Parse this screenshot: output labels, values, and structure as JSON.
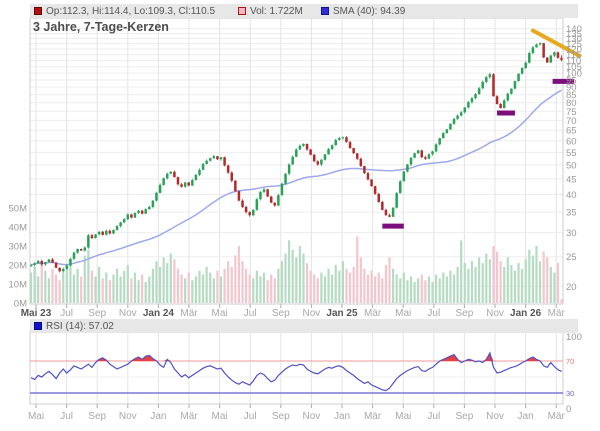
{
  "header": {
    "ohlc_label": "Op:112.3, Hi:114.4, Lo:109.3, Cl:110.5",
    "vol_label": "Vol: 1.722M",
    "sma_label": "SMA (40): 94.39",
    "title": "3 Jahre, 7-Tage-Kerzen"
  },
  "rsi_panel": {
    "label": "RSI (14): 57.02"
  },
  "axes": {
    "price_ticks": [
      140,
      135,
      130,
      125,
      120,
      115,
      110,
      105,
      100,
      95,
      90,
      85,
      80,
      75,
      70,
      65,
      60,
      55,
      50,
      45,
      40,
      35,
      30,
      25,
      20
    ],
    "volume_ticks": [
      "50M",
      "40M",
      "30M",
      "20M",
      "10M",
      "0M"
    ],
    "rsi_ticks": [
      {
        "value": 100,
        "label": "100",
        "color": "#999999"
      },
      {
        "value": 70,
        "label": "70",
        "color": "#e07878"
      },
      {
        "value": 30,
        "label": "30",
        "color": "#6868d8"
      },
      {
        "value": 0,
        "label": "0",
        "color": "#999999"
      }
    ],
    "months_main": [
      {
        "label": "Mai 23",
        "bold": true
      },
      {
        "label": "Jul",
        "bold": false
      },
      {
        "label": "Sep",
        "bold": false
      },
      {
        "label": "Nov",
        "bold": false
      },
      {
        "label": "Jan 24",
        "bold": true
      },
      {
        "label": "Mär",
        "bold": false
      },
      {
        "label": "Mai",
        "bold": false
      },
      {
        "label": "Jul",
        "bold": false
      },
      {
        "label": "Sep",
        "bold": false
      },
      {
        "label": "Nov",
        "bold": false
      },
      {
        "label": "Jan 25",
        "bold": true
      },
      {
        "label": "Mär",
        "bold": false
      },
      {
        "label": "Mai",
        "bold": false
      },
      {
        "label": "Jul",
        "bold": false
      },
      {
        "label": "Sep",
        "bold": false
      },
      {
        "label": "Nov",
        "bold": false
      },
      {
        "label": "Jan 26",
        "bold": true
      },
      {
        "label": "Mär",
        "bold": false
      }
    ],
    "months_rsi": [
      "Mai",
      "Jul",
      "Sep",
      "Nov",
      "Jan",
      "Mär",
      "Mai",
      "Jul",
      "Sep",
      "Nov",
      "Jan",
      "Mär",
      "Mai",
      "Jul",
      "Sep",
      "Nov",
      "Jan",
      "Mär"
    ]
  },
  "colors": {
    "candle_up": "#27a258",
    "candle_down": "#b22a2a",
    "vol_up": "#b5dbc3",
    "vol_down": "#f3c5cd",
    "sma_line": "#9fa8ef",
    "rsi_line": "#5050c8",
    "rsi_overbought_line": "#f09898",
    "rsi_oversold_line": "#7878d8",
    "rsi_fill": "#e84040",
    "annotation_trend": "#e8a81c",
    "annotation_support": "#7d0f7d",
    "grid_h": "#ededed",
    "grid_v": "#e4e4e4",
    "panel_border": "#cccccc",
    "tick_text": "#999999",
    "month_text": "#a8a8a8",
    "month_text_bold": "#555555",
    "legend_ohlc_fill": "#b40f0f",
    "legend_ohlc_border": "#5f0606",
    "legend_vol_fill": "#f3b9c3",
    "legend_vol_border": "#b01212",
    "legend_sma_fill": "#2f2fd9",
    "legend_sma_border": "#12128c",
    "legend_rsi_fill": "#0f0fd0",
    "legend_rsi_border": "#0a0a80"
  },
  "chart_data": {
    "type": "candlestick",
    "title": "3 Jahre, 7-Tage-Kerzen",
    "interval": "weekly (7-Tage-Kerzen)",
    "span": "3 Jahre",
    "price_axis": {
      "min": 20,
      "max": 140,
      "scale": "log",
      "position": "right"
    },
    "volume_axis": {
      "min_m": 0,
      "max_m": 50,
      "position": "left"
    },
    "rsi_axis": {
      "min": 0,
      "max": 100,
      "overbought": 70,
      "oversold": 30
    },
    "sma_period": 40,
    "sma_current": 94.39,
    "rsi_current": 57.02,
    "volume_current": "1.722M",
    "last_candle": {
      "open": 112.3,
      "high": 114.4,
      "low": 109.3,
      "close": 110.5
    },
    "closes": [
      23.5,
      23.8,
      24.2,
      23.6,
      24.0,
      24.5,
      23.9,
      23.0,
      22.4,
      22.8,
      23.4,
      24.6,
      25.8,
      26.5,
      26.2,
      26.8,
      29.4,
      28.8,
      29.6,
      30.2,
      29.5,
      30.4,
      29.8,
      30.6,
      31.5,
      32.4,
      33.2,
      34.4,
      33.6,
      34.8,
      35.4,
      34.6,
      35.8,
      36.4,
      38.2,
      40.5,
      43.0,
      45.2,
      46.8,
      47.5,
      45.6,
      43.2,
      42.4,
      43.8,
      42.8,
      44.6,
      46.4,
      48.2,
      50.4,
      51.6,
      52.6,
      53.4,
      52.2,
      53.0,
      49.8,
      47.2,
      44.4,
      41.0,
      38.2,
      36.4,
      35.0,
      34.2,
      35.6,
      38.6,
      40.8,
      41.6,
      39.4,
      37.6,
      36.8,
      39.8,
      43.4,
      46.8,
      50.2,
      53.2,
      56.2,
      57.8,
      58.6,
      56.2,
      54.0,
      51.4,
      50.2,
      52.0,
      54.2,
      56.4,
      58.0,
      60.4,
      61.2,
      61.6,
      59.4,
      56.8,
      54.6,
      52.4,
      49.6,
      47.0,
      44.8,
      42.6,
      40.2,
      37.8,
      35.6,
      34.2,
      33.8,
      36.2,
      40.4,
      44.2,
      47.6,
      50.2,
      52.8,
      54.6,
      55.8,
      53.0,
      52.4,
      54.2,
      55.4,
      58.4,
      61.2,
      63.6,
      65.4,
      68.2,
      70.8,
      72.6,
      74.4,
      77.2,
      80.4,
      82.8,
      85.4,
      89.2,
      93.6,
      97.0,
      99.2,
      84.0,
      79.2,
      76.8,
      81.4,
      85.6,
      89.0,
      94.2,
      99.6,
      104.0,
      108.2,
      116.4,
      121.6,
      124.2,
      125.4,
      112.6,
      108.4,
      114.2,
      117.0,
      112.3,
      110.5
    ],
    "volumes_m": [
      16,
      19,
      14,
      21,
      17,
      13,
      18,
      15,
      12,
      16,
      20,
      22,
      15,
      18,
      14,
      25,
      28,
      17,
      14,
      19,
      13,
      16,
      12,
      15,
      18,
      14,
      17,
      20,
      13,
      16,
      12,
      15,
      11,
      14,
      18,
      22,
      19,
      24,
      21,
      26,
      23,
      18,
      15,
      13,
      16,
      12,
      14,
      17,
      15,
      19,
      16,
      13,
      17,
      14,
      18,
      22,
      19,
      25,
      30,
      22,
      18,
      15,
      13,
      17,
      14,
      16,
      12,
      15,
      13,
      18,
      22,
      26,
      33,
      28,
      24,
      30,
      26,
      21,
      17,
      15,
      13,
      16,
      14,
      18,
      15,
      20,
      17,
      22,
      18,
      16,
      19,
      35,
      24,
      18,
      15,
      17,
      14,
      16,
      13,
      20,
      24,
      18,
      15,
      13,
      16,
      12,
      14,
      11,
      13,
      15,
      12,
      14,
      11,
      15,
      13,
      16,
      14,
      17,
      15,
      19,
      33,
      21,
      18,
      22,
      19,
      24,
      21,
      26,
      23,
      30,
      27,
      22,
      19,
      24,
      20,
      17,
      21,
      18,
      23,
      28,
      25,
      30,
      22,
      27,
      24,
      19,
      16,
      21,
      2
    ],
    "rsi": [
      49,
      47,
      52,
      50,
      54,
      57,
      53,
      48,
      55,
      60,
      55,
      59,
      64,
      62,
      60,
      63,
      66,
      62,
      68,
      72,
      74,
      71,
      66,
      63,
      60,
      62,
      64,
      66,
      70,
      73,
      75,
      72,
      76,
      77,
      73,
      70,
      65,
      62,
      72,
      68,
      60,
      55,
      50,
      53,
      49,
      52,
      55,
      58,
      61,
      63,
      64,
      62,
      60,
      61,
      55,
      50,
      46,
      43,
      41,
      44,
      42,
      40,
      45,
      52,
      55,
      53,
      48,
      44,
      46,
      52,
      56,
      60,
      63,
      65,
      64,
      66,
      65,
      60,
      57,
      55,
      54,
      57,
      60,
      62,
      61,
      63,
      64,
      62,
      58,
      55,
      52,
      48,
      45,
      42,
      44,
      40,
      38,
      36,
      34,
      33,
      36,
      42,
      48,
      52,
      55,
      58,
      60,
      62,
      63,
      58,
      57,
      60,
      62,
      66,
      70,
      72,
      74,
      76,
      78,
      72,
      68,
      70,
      72,
      71,
      69,
      70,
      68,
      72,
      80,
      62,
      55,
      56,
      58,
      60,
      62,
      63,
      65,
      68,
      70,
      73,
      75,
      72,
      70,
      64,
      62,
      68,
      63,
      59,
      57
    ],
    "annotations": {
      "trendline": {
        "from_week": 140,
        "from_price": 138,
        "to_week": 153,
        "to_price": 114
      },
      "support_segments": [
        {
          "from_week": 98,
          "to_week": 104,
          "price": 31.5
        },
        {
          "from_week": 130,
          "to_week": 135,
          "price": 74
        },
        {
          "from_week": 145.5,
          "to_week": 151.5,
          "price": 94
        }
      ]
    }
  }
}
